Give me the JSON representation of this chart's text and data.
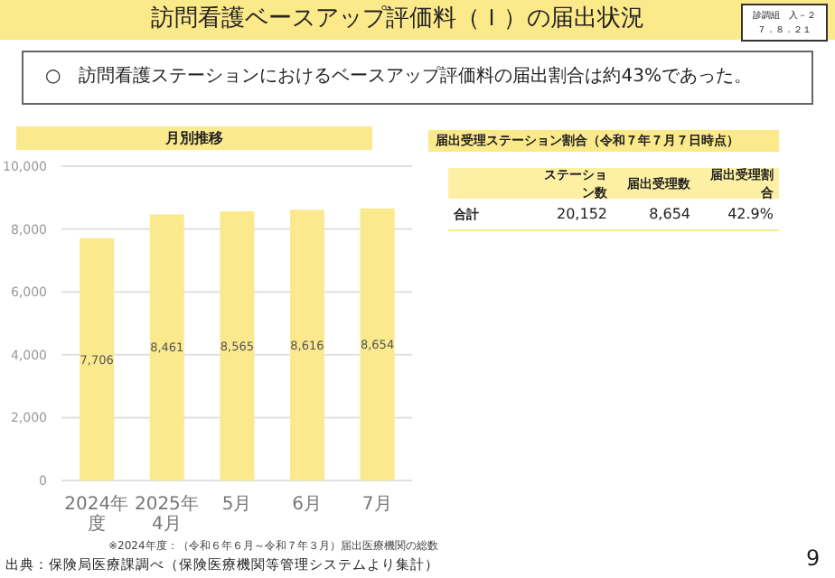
{
  "chart_data": [
    {
      "type": "bar",
      "title": "月別推移",
      "categories": [
        "2024年度",
        "2025年4月",
        "5月",
        "6月",
        "7月"
      ],
      "values": [
        7706,
        8461,
        8565,
        8616,
        8654
      ],
      "color": "#fbe98e",
      "ylim": [
        0,
        10000
      ],
      "yticks": [
        {
          "value": 0,
          "label": "0"
        },
        {
          "value": 2000,
          "label": "2,000"
        },
        {
          "value": 4000,
          "label": "4,000"
        },
        {
          "value": 6000,
          "label": "6,000"
        },
        {
          "value": 8000,
          "label": "8,000"
        },
        {
          "value": 10000,
          "label": "10,000"
        }
      ],
      "grid": "y",
      "value_labels": [
        "7,706",
        "8,461",
        "8,565",
        "8,616",
        "8,654"
      ],
      "annotations": [
        "訪問看護ベースアップ評価料（Ｉ）の届出状況",
        "診調組　入－２",
        "７．８．２１",
        "○　訪問看護ステーションにおけるベースアップ評価料の届出割合は約43%であった。",
        "※2024年度：（令和６年６月～令和７年３月）届出医療機関の総数",
        "出典：保険局医療課調べ（保険医療機関等管理システムより集計）",
        "9"
      ]
    },
    {
      "type": "other",
      "title": "届出受理ステーション割合（令和７年７月７日時点）",
      "annotations": [
        "ステーション数",
        "届出受理数",
        "届出受理割合",
        "合計",
        "20,152",
        "8,654",
        "42.9%"
      ]
    }
  ]
}
